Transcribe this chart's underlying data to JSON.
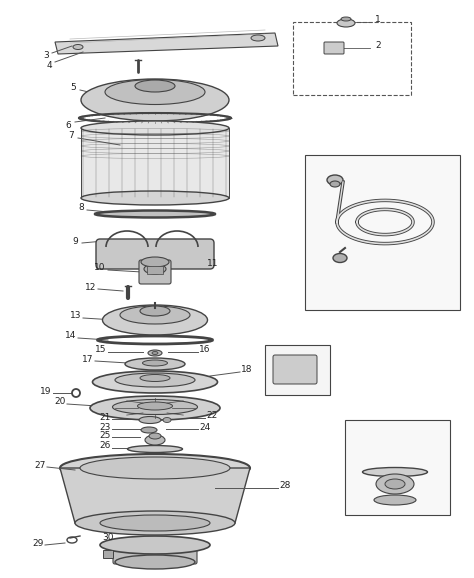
{
  "bg_color": "#ffffff",
  "lc": "#444444",
  "fig_w": 4.74,
  "fig_h": 5.78,
  "dpi": 100
}
